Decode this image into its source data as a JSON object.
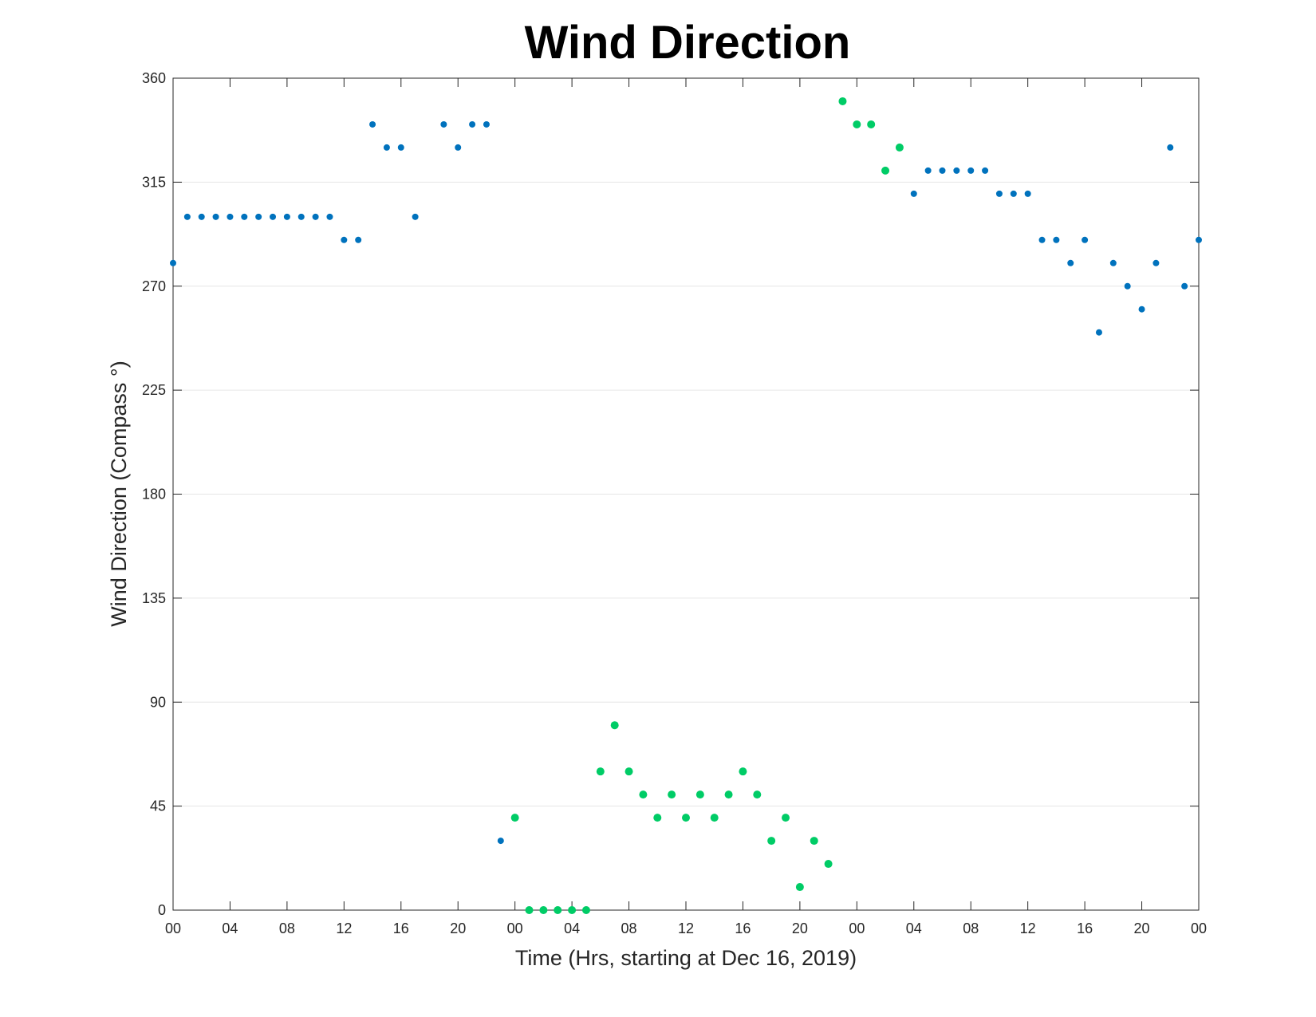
{
  "chart_data": {
    "type": "scatter",
    "title": "Wind Direction",
    "xlabel": "Time (Hrs, starting at Dec 16, 2019)",
    "ylabel": "Wind Direction (Compass °)",
    "xlim": [
      0,
      72
    ],
    "ylim": [
      0,
      360
    ],
    "grid": "horizontal",
    "x_ticks": [
      0,
      4,
      8,
      12,
      16,
      20,
      24,
      28,
      32,
      36,
      40,
      44,
      48,
      52,
      56,
      60,
      64,
      68,
      72
    ],
    "x_tick_labels": [
      "00",
      "04",
      "08",
      "12",
      "16",
      "20",
      "00",
      "04",
      "08",
      "12",
      "16",
      "20",
      "00",
      "04",
      "08",
      "12",
      "16",
      "20",
      "00"
    ],
    "y_ticks": [
      0,
      45,
      90,
      135,
      180,
      225,
      270,
      315,
      360
    ],
    "y_tick_labels": [
      "0",
      "45",
      "90",
      "135",
      "180",
      "225",
      "270",
      "315",
      "360"
    ],
    "series": [
      {
        "color": "#0072BD",
        "points": [
          [
            0,
            280
          ],
          [
            1,
            300
          ],
          [
            2,
            300
          ],
          [
            3,
            300
          ],
          [
            4,
            300
          ],
          [
            5,
            300
          ],
          [
            6,
            300
          ],
          [
            7,
            300
          ],
          [
            8,
            300
          ],
          [
            9,
            300
          ],
          [
            10,
            300
          ],
          [
            11,
            300
          ],
          [
            12,
            290
          ],
          [
            13,
            290
          ],
          [
            14,
            340
          ],
          [
            15,
            330
          ],
          [
            16,
            330
          ],
          [
            17,
            300
          ],
          [
            19,
            340
          ],
          [
            20,
            330
          ],
          [
            21,
            340
          ],
          [
            22,
            340
          ],
          [
            23,
            30
          ],
          [
            52,
            310
          ],
          [
            53,
            320
          ],
          [
            54,
            320
          ],
          [
            55,
            320
          ],
          [
            56,
            320
          ],
          [
            57,
            320
          ],
          [
            58,
            310
          ],
          [
            59,
            310
          ],
          [
            60,
            310
          ],
          [
            61,
            290
          ],
          [
            62,
            290
          ],
          [
            63,
            280
          ],
          [
            64,
            290
          ],
          [
            65,
            250
          ],
          [
            66,
            280
          ],
          [
            67,
            270
          ],
          [
            68,
            260
          ],
          [
            69,
            280
          ],
          [
            70,
            330
          ],
          [
            71,
            270
          ],
          [
            72,
            290
          ]
        ]
      },
      {
        "color": "#00CC66",
        "points": [
          [
            24,
            40
          ],
          [
            25,
            0
          ],
          [
            26,
            0
          ],
          [
            27,
            0
          ],
          [
            28,
            0
          ],
          [
            29,
            0
          ],
          [
            30,
            60
          ],
          [
            31,
            80
          ],
          [
            32,
            60
          ],
          [
            33,
            50
          ],
          [
            34,
            40
          ],
          [
            35,
            50
          ],
          [
            36,
            40
          ],
          [
            37,
            50
          ],
          [
            38,
            40
          ],
          [
            39,
            50
          ],
          [
            40,
            60
          ],
          [
            41,
            50
          ],
          [
            42,
            30
          ],
          [
            43,
            40
          ],
          [
            44,
            10
          ],
          [
            45,
            30
          ],
          [
            46,
            20
          ],
          [
            47,
            350
          ],
          [
            48,
            340
          ],
          [
            49,
            340
          ],
          [
            50,
            320
          ],
          [
            51,
            330
          ]
        ]
      }
    ]
  }
}
